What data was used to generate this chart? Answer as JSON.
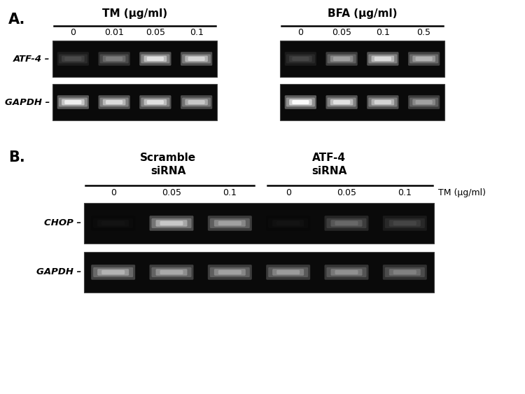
{
  "bg_color": "#ffffff",
  "gel_bg": "#0a0a0a",
  "panel_A": {
    "TM_label": "TM (μg/ml)",
    "BFA_label": "BFA (μg/ml)",
    "TM_doses": [
      "0",
      "0.01",
      "0.05",
      "0.1"
    ],
    "BFA_doses": [
      "0",
      "0.05",
      "0.1",
      "0.5"
    ],
    "ATF4_label": "ATF-4",
    "GAPDH_label": "GAPDH",
    "ATF4_TM_bands": [
      0.3,
      0.5,
      0.9,
      0.85
    ],
    "GAPDH_TM_bands": [
      0.95,
      0.88,
      0.9,
      0.8
    ],
    "ATF4_BFA_bands": [
      0.28,
      0.65,
      0.88,
      0.72
    ],
    "GAPDH_BFA_bands": [
      1.0,
      0.9,
      0.85,
      0.65
    ]
  },
  "panel_B": {
    "scramble_label": "Scramble\nsiRNA",
    "atf4_label": "ATF-4\nsiRNA",
    "doses": [
      "0",
      "0.05",
      "0.1",
      "0",
      "0.05",
      "0.1"
    ],
    "TM_label": "TM (μg/ml)",
    "CHOP_label": "CHOP",
    "GAPDH_label": "GAPDH",
    "CHOP_bands": [
      0.08,
      0.8,
      0.65,
      0.08,
      0.42,
      0.28
    ],
    "GAPDH_bands": [
      0.72,
      0.68,
      0.65,
      0.62,
      0.58,
      0.52
    ]
  }
}
